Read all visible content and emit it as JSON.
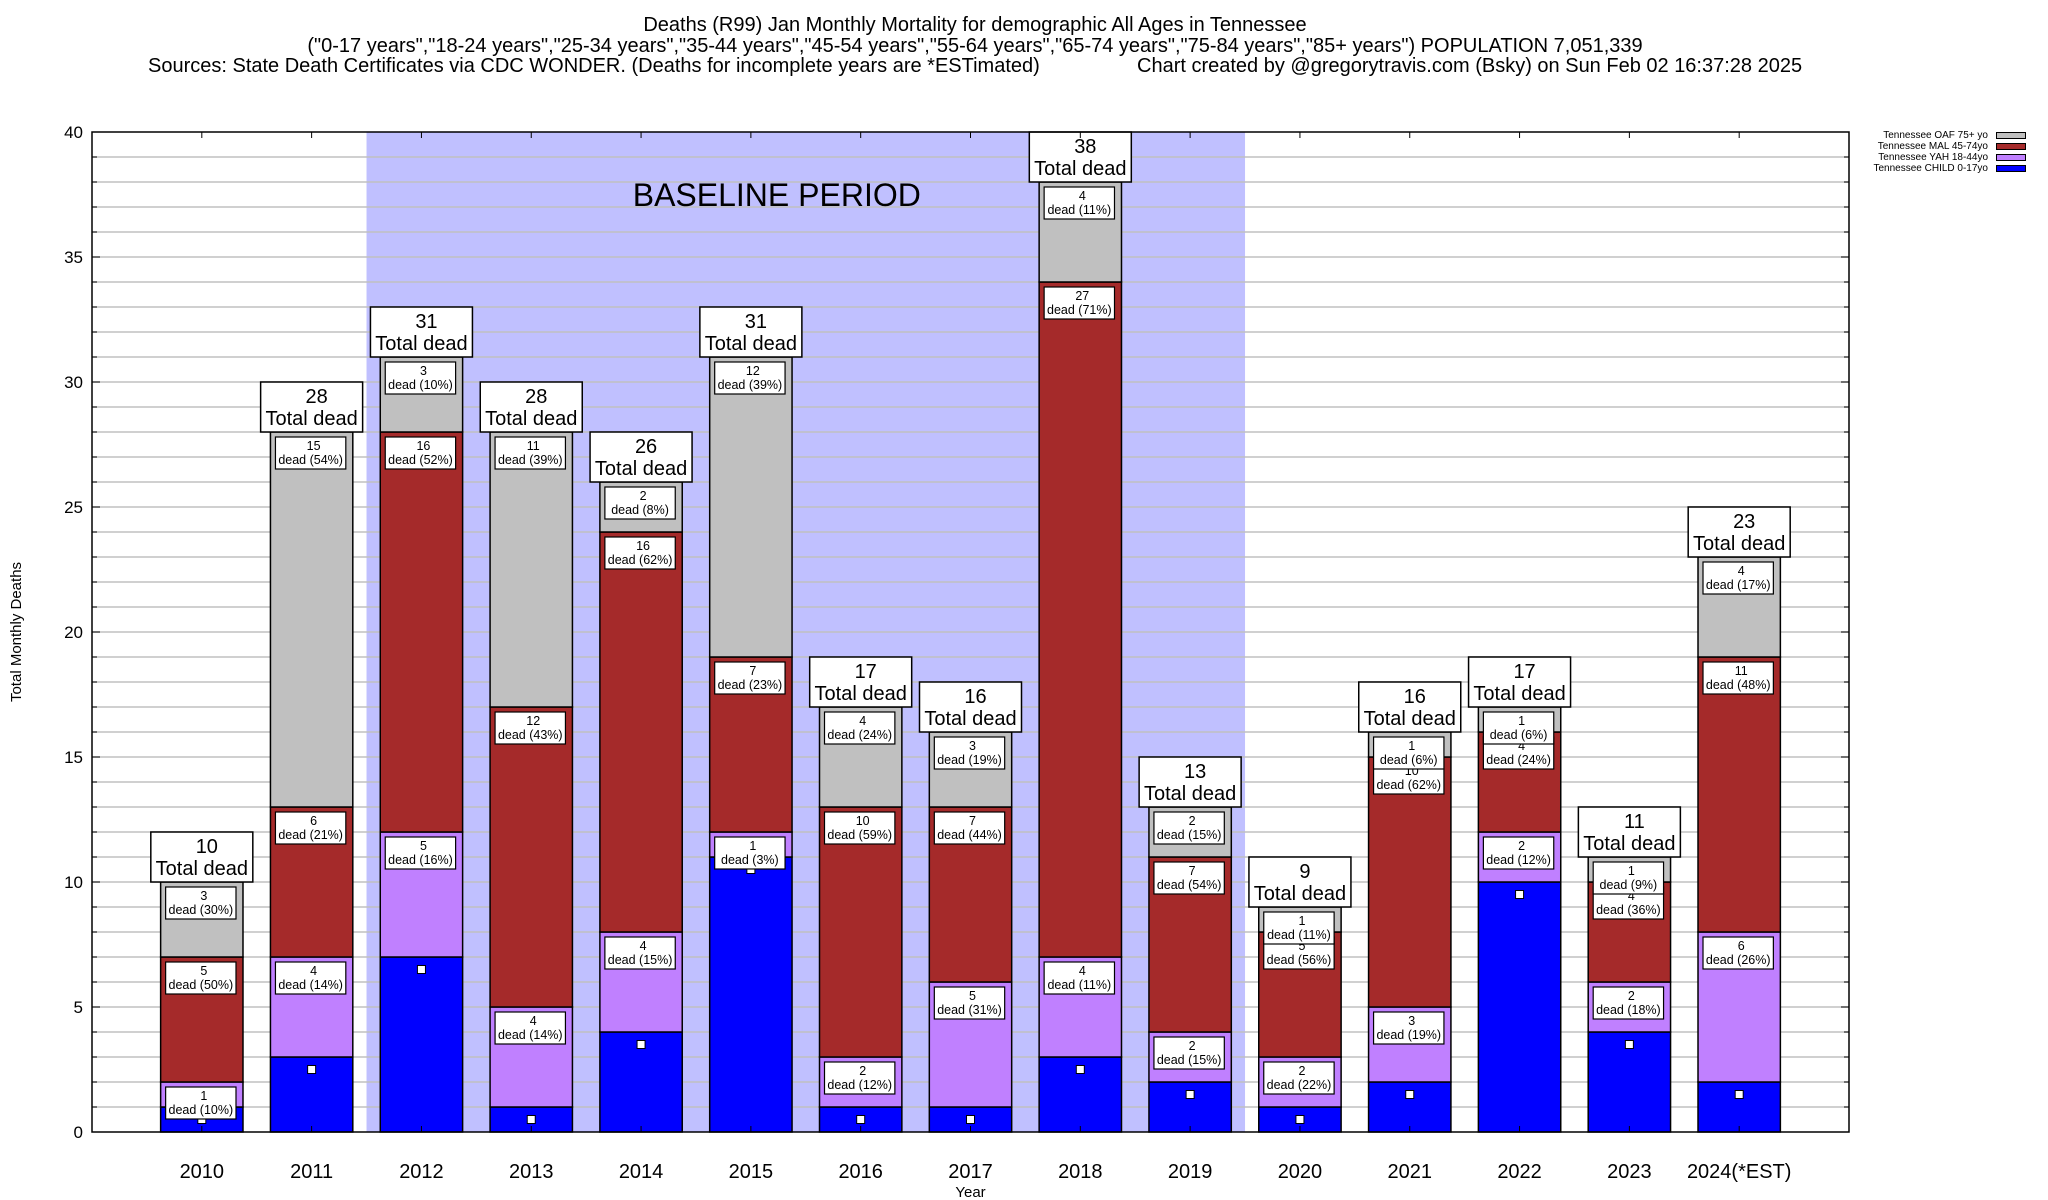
{
  "header": {
    "title": "Deaths (R99) Jan Monthly Mortality for demographic All Ages in Tennessee",
    "subtitle": "(\"0-17 years\",\"18-24 years\",\"25-34 years\",\"35-44 years\",\"45-54 years\",\"55-64 years\",\"65-74 years\",\"75-84 years\",\"85+ years\") POPULATION 7,051,339",
    "sources": "Sources: State Death Certificates via CDC WONDER. (Deaths for incomplete years are *ESTimated)",
    "credit": "Chart created by @gregorytravis.com (Bsky) on Sun Feb 02 16:37:28 2025"
  },
  "colors": {
    "child": "#0000ff",
    "yah": "#c080ff",
    "mal": "#a52a2a",
    "oaf": "#c0c0c0",
    "baseline_shade": "#c0c0ff",
    "grid": "#c0c0c0"
  },
  "chart_data": {
    "type": "bar",
    "stacked": true,
    "title": "Deaths (R99) Jan Monthly Mortality for demographic All Ages in Tennessee",
    "xlabel": "Year",
    "ylabel": "Total Monthly Deaths",
    "ylim": [
      0,
      40
    ],
    "yticks": [
      0,
      5,
      10,
      15,
      20,
      25,
      30,
      35,
      40
    ],
    "xlim": [
      2009,
      2025
    ],
    "grid": true,
    "legend_position": "outside-top-right",
    "categories": [
      "2010",
      "2011",
      "2012",
      "2013",
      "2014",
      "2015",
      "2016",
      "2017",
      "2018",
      "2019",
      "2020",
      "2021",
      "2022",
      "2023",
      "2024(*EST)"
    ],
    "total_label_suffix": "Total dead",
    "segment_label_word": "dead",
    "annotation": {
      "text": "BASELINE PERIOD",
      "x_range": [
        2011.5,
        2019.5
      ]
    },
    "series": [
      {
        "key": "child",
        "name": "Tennessee CHILD 0-17yo",
        "values": [
          1,
          3,
          7,
          1,
          4,
          11,
          1,
          1,
          3,
          2,
          1,
          2,
          10,
          4,
          2
        ],
        "labels": [
          null,
          null,
          null,
          null,
          null,
          null,
          null,
          null,
          null,
          null,
          null,
          null,
          null,
          null,
          null
        ]
      },
      {
        "key": "yah",
        "name": "Tennessee YAH 18-44yo",
        "values": [
          1,
          4,
          5,
          4,
          4,
          1,
          2,
          5,
          4,
          2,
          2,
          3,
          2,
          2,
          6
        ],
        "labels": [
          "dead (10%)",
          "dead (14%)",
          "dead (16%)",
          "dead (14%)",
          "dead (15%)",
          "dead (3%)",
          "dead (12%)",
          "dead (31%)",
          "dead (11%)",
          "dead (15%)",
          "dead (22%)",
          "dead (19%)",
          "dead (12%)",
          "dead (18%)",
          "dead (26%)"
        ]
      },
      {
        "key": "mal",
        "name": "Tennessee MAL 45-74yo",
        "values": [
          5,
          6,
          16,
          12,
          16,
          7,
          10,
          7,
          27,
          7,
          5,
          10,
          4,
          4,
          11
        ],
        "labels": [
          "dead (50%)",
          "dead (21%)",
          "dead (52%)",
          "dead (43%)",
          "dead (62%)",
          "dead (23%)",
          "dead (59%)",
          "dead (44%)",
          "dead (71%)",
          "dead (54%)",
          "dead (56%)",
          "dead (62%)",
          "dead (24%)",
          "dead (36%)",
          "dead (48%)"
        ]
      },
      {
        "key": "oaf",
        "name": "Tennessee OAF 75+ yo",
        "values": [
          3,
          15,
          3,
          11,
          2,
          12,
          4,
          3,
          4,
          2,
          1,
          1,
          1,
          1,
          4
        ],
        "labels": [
          "dead (30%)",
          "dead (54%)",
          "dead (10%)",
          "dead (39%)",
          "dead (8%)",
          "dead (39%)",
          "dead (24%)",
          "dead (19%)",
          "dead (11%)",
          "dead (15%)",
          "dead (11%)",
          "dead (6%)",
          "dead (6%)",
          "dead (9%)",
          "dead (17%)"
        ]
      }
    ],
    "totals": [
      10,
      28,
      31,
      28,
      26,
      31,
      17,
      16,
      38,
      13,
      9,
      16,
      17,
      11,
      23
    ]
  },
  "legend": {
    "items": [
      {
        "label": "Tennessee OAF 75+ yo",
        "key": "oaf"
      },
      {
        "label": "Tennessee MAL 45-74yo",
        "key": "mal"
      },
      {
        "label": "Tennessee YAH 18-44yo",
        "key": "yah"
      },
      {
        "label": "Tennessee CHILD 0-17yo",
        "key": "child"
      }
    ]
  }
}
